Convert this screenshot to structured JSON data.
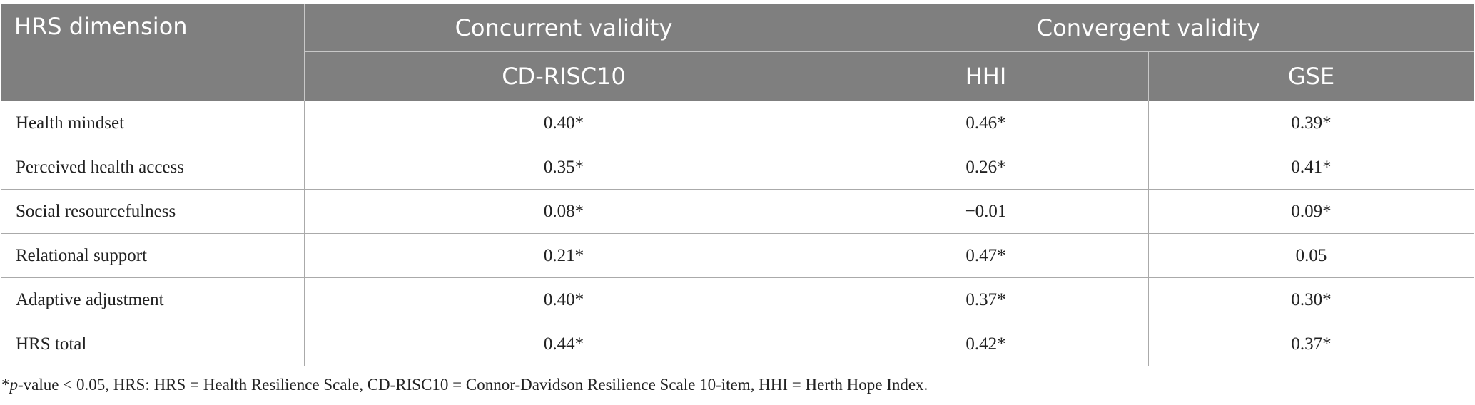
{
  "table": {
    "header": {
      "first": "HRS dimension",
      "groups": [
        "Concurrent validity",
        "Convergent validity"
      ],
      "columns": [
        "CD-RISC10",
        "HHI",
        "GSE"
      ]
    },
    "rows": [
      [
        "Health mindset",
        "0.40*",
        "0.46*",
        "0.39*"
      ],
      [
        "Perceived health access",
        "0.35*",
        "0.26*",
        "0.41*"
      ],
      [
        "Social resourcefulness",
        "0.08*",
        "−0.01",
        "0.09*"
      ],
      [
        "Relational support",
        "0.21*",
        "0.47*",
        "0.05"
      ],
      [
        "Adaptive adjustment",
        "0.40*",
        "0.37*",
        "0.30*"
      ],
      [
        "HRS total",
        "0.44*",
        "0.42*",
        "0.37*"
      ]
    ]
  },
  "footnote": [
    "*",
    "p",
    "-value < 0.05, HRS: HRS = Health Resilience Scale, CD-RISC10 = Connor-Davidson Resilience Scale 10-item, HHI = Herth Hope Index."
  ]
}
